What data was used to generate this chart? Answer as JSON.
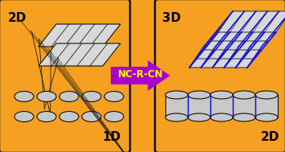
{
  "bg_color": "#F5A020",
  "orange": "#F5A020",
  "black": "#111111",
  "grid_fill": "#D8D8D8",
  "blue": "#1010DD",
  "ellipse_fill": "#C8C8C8",
  "arrow_color": "#AA00CC",
  "arrow_text": "NC-R-CN",
  "arrow_text_color": "#FFFF00",
  "label_2d_left": "2D",
  "label_1d": "1D",
  "label_3d": "3D",
  "label_2d_right": "2D",
  "label_fontsize": 11
}
